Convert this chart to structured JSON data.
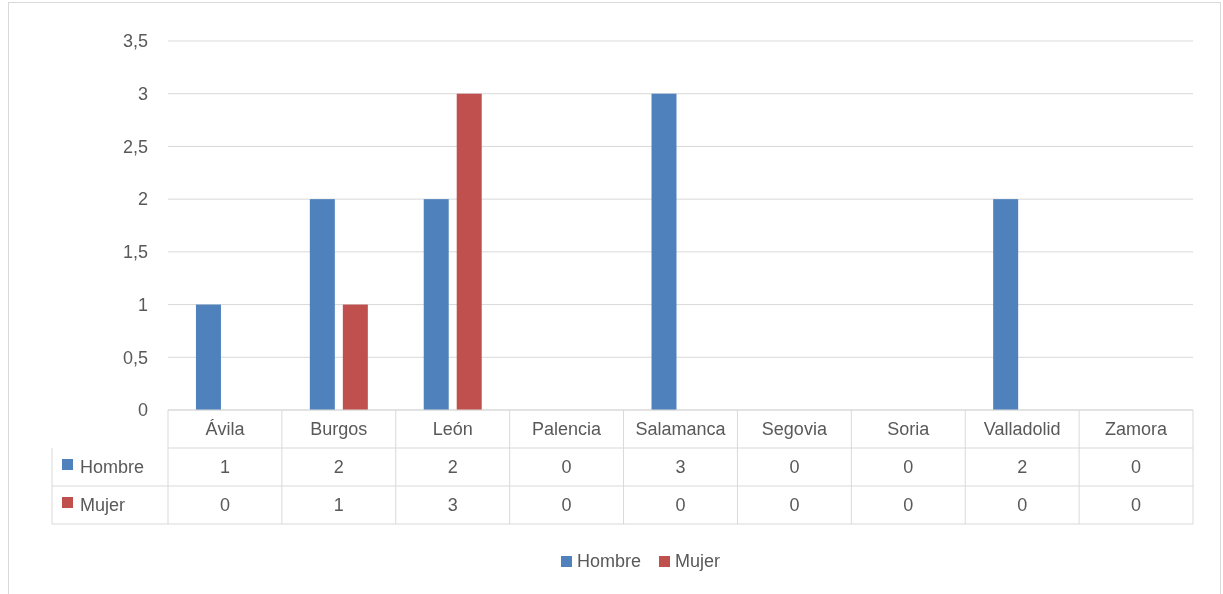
{
  "chart_data": {
    "type": "bar",
    "categories": [
      "Ávila",
      "Burgos",
      "León",
      "Palencia",
      "Salamanca",
      "Segovia",
      "Soria",
      "Valladolid",
      "Zamora"
    ],
    "series": [
      {
        "name": "Hombre",
        "color": "#4f81bd",
        "values": [
          1,
          2,
          2,
          0,
          3,
          0,
          0,
          2,
          0
        ]
      },
      {
        "name": "Mujer",
        "color": "#c0504d",
        "values": [
          0,
          1,
          3,
          0,
          0,
          0,
          0,
          0,
          0
        ]
      }
    ],
    "ylim": [
      0,
      3.5
    ],
    "yticks": [
      0,
      {
        "value": 0.5,
        "label": "0,5"
      },
      1,
      {
        "value": 1.5,
        "label": "1,5"
      },
      2,
      {
        "value": 2.5,
        "label": "2,5"
      },
      3,
      {
        "value": 3.5,
        "label": "3,5"
      }
    ],
    "grid": "y",
    "legend": "bottom",
    "data_labels": true
  }
}
